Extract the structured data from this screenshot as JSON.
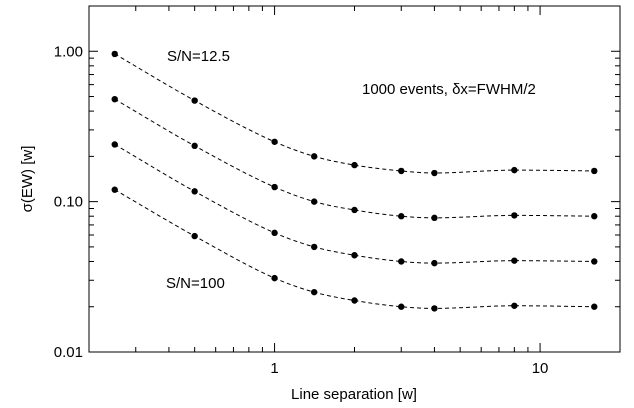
{
  "chart_data": {
    "type": "scatter",
    "xlabel": "Line separation [w]",
    "ylabel": "σ(EW) [w]",
    "xscale": "log",
    "yscale": "log",
    "xlim": [
      0.2,
      20
    ],
    "ylim": [
      0.01,
      2.0
    ],
    "x_ticks": [
      {
        "value": 1,
        "label": "1"
      },
      {
        "value": 10,
        "label": "10"
      }
    ],
    "y_ticks": [
      {
        "value": 0.01,
        "label": "0.01"
      },
      {
        "value": 0.1,
        "label": "0.10"
      },
      {
        "value": 1,
        "label": "1.00"
      }
    ],
    "x": [
      0.25,
      0.5,
      1,
      1.41,
      2,
      3,
      4,
      8,
      16
    ],
    "series": [
      {
        "values": [
          0.96,
          0.47,
          0.25,
          0.2,
          0.175,
          0.16,
          0.155,
          0.162,
          0.16
        ]
      },
      {
        "values": [
          0.48,
          0.235,
          0.125,
          0.1,
          0.088,
          0.08,
          0.078,
          0.081,
          0.08
        ]
      },
      {
        "values": [
          0.24,
          0.117,
          0.062,
          0.05,
          0.044,
          0.04,
          0.039,
          0.0405,
          0.04
        ]
      },
      {
        "values": [
          0.12,
          0.059,
          0.031,
          0.025,
          0.022,
          0.02,
          0.0195,
          0.0203,
          0.02
        ]
      }
    ],
    "annotations": [
      {
        "text": "S/N=12.5"
      },
      {
        "text": "1000 events, δx=FWHM/2"
      },
      {
        "text": "S/N=100"
      }
    ],
    "grid": false
  }
}
